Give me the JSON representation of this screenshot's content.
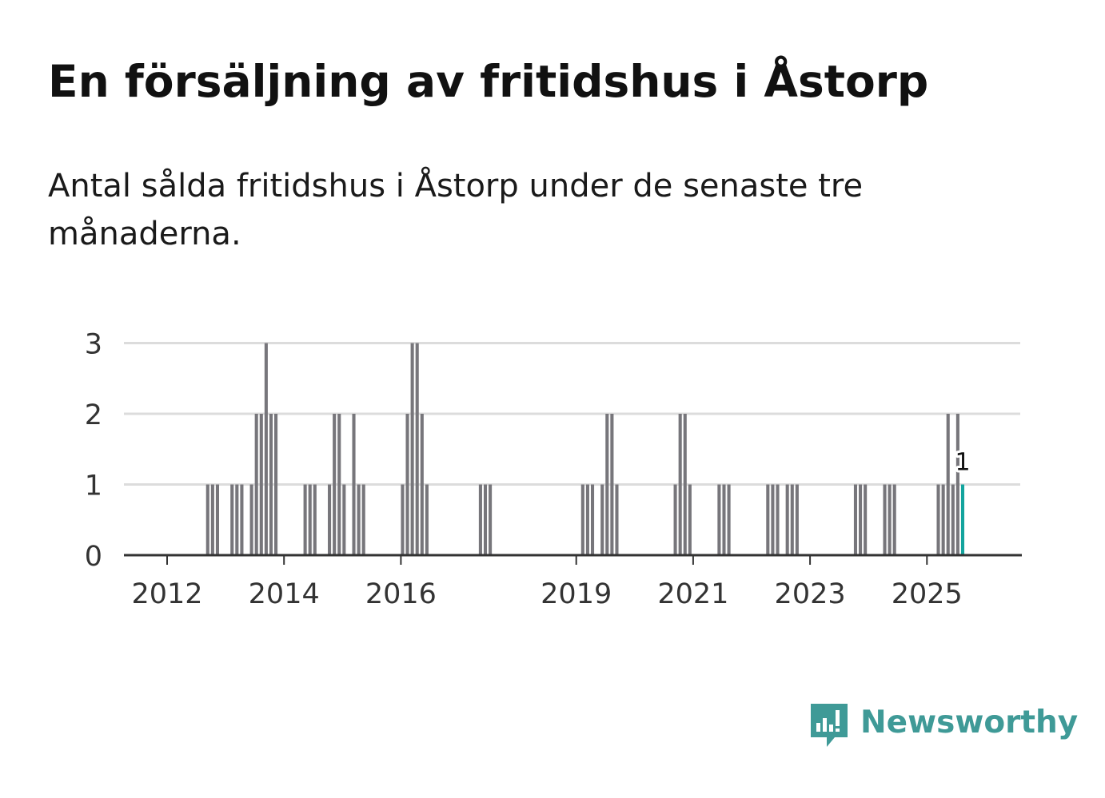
{
  "header": {
    "title": "En försäljning av fritidshus i Åstorp",
    "subtitle": "Antal sålda fritidshus i Åstorp under de senaste tre månaderna."
  },
  "brand": {
    "name": "Newsworthy",
    "icon": "newsworthy-logo-icon",
    "color": "#3f9a97"
  },
  "chart_data": {
    "type": "bar",
    "title": "",
    "xlabel": "",
    "ylabel": "",
    "x_unit": "month",
    "ylim": [
      0,
      3
    ],
    "yticks": [
      "0",
      "1",
      "2",
      "3"
    ],
    "xticks": [
      "2012",
      "2014",
      "2016",
      "2019",
      "2021",
      "2023",
      "2025"
    ],
    "grid": true,
    "legend": "none",
    "colors": {
      "bar": "#77767b",
      "highlight": "#13a49e",
      "grid": "#dcdcdc",
      "axis": "#333333"
    },
    "highlight_label": "1",
    "series": [
      {
        "values": [
          {
            "x": "2012-09",
            "y": 1
          },
          {
            "x": "2012-10",
            "y": 1
          },
          {
            "x": "2012-11",
            "y": 1
          },
          {
            "x": "2013-02",
            "y": 1
          },
          {
            "x": "2013-03",
            "y": 1
          },
          {
            "x": "2013-04",
            "y": 1
          },
          {
            "x": "2013-06",
            "y": 1
          },
          {
            "x": "2013-07",
            "y": 2
          },
          {
            "x": "2013-08",
            "y": 2
          },
          {
            "x": "2013-09",
            "y": 3
          },
          {
            "x": "2013-10",
            "y": 2
          },
          {
            "x": "2013-11",
            "y": 2
          },
          {
            "x": "2014-05",
            "y": 1
          },
          {
            "x": "2014-06",
            "y": 1
          },
          {
            "x": "2014-07",
            "y": 1
          },
          {
            "x": "2014-10",
            "y": 1
          },
          {
            "x": "2014-11",
            "y": 2
          },
          {
            "x": "2014-12",
            "y": 2
          },
          {
            "x": "2015-01",
            "y": 1
          },
          {
            "x": "2015-03",
            "y": 2
          },
          {
            "x": "2015-04",
            "y": 1
          },
          {
            "x": "2015-05",
            "y": 1
          },
          {
            "x": "2016-01",
            "y": 1
          },
          {
            "x": "2016-02",
            "y": 2
          },
          {
            "x": "2016-03",
            "y": 3
          },
          {
            "x": "2016-04",
            "y": 3
          },
          {
            "x": "2016-05",
            "y": 2
          },
          {
            "x": "2016-06",
            "y": 1
          },
          {
            "x": "2017-05",
            "y": 1
          },
          {
            "x": "2017-06",
            "y": 1
          },
          {
            "x": "2017-07",
            "y": 1
          },
          {
            "x": "2019-02",
            "y": 1
          },
          {
            "x": "2019-03",
            "y": 1
          },
          {
            "x": "2019-04",
            "y": 1
          },
          {
            "x": "2019-06",
            "y": 1
          },
          {
            "x": "2019-07",
            "y": 2
          },
          {
            "x": "2019-08",
            "y": 2
          },
          {
            "x": "2019-09",
            "y": 1
          },
          {
            "x": "2020-09",
            "y": 1
          },
          {
            "x": "2020-10",
            "y": 2
          },
          {
            "x": "2020-11",
            "y": 2
          },
          {
            "x": "2020-12",
            "y": 1
          },
          {
            "x": "2021-06",
            "y": 1
          },
          {
            "x": "2021-07",
            "y": 1
          },
          {
            "x": "2021-08",
            "y": 1
          },
          {
            "x": "2022-04",
            "y": 1
          },
          {
            "x": "2022-05",
            "y": 1
          },
          {
            "x": "2022-06",
            "y": 1
          },
          {
            "x": "2022-08",
            "y": 1
          },
          {
            "x": "2022-09",
            "y": 1
          },
          {
            "x": "2022-10",
            "y": 1
          },
          {
            "x": "2023-10",
            "y": 1
          },
          {
            "x": "2023-11",
            "y": 1
          },
          {
            "x": "2023-12",
            "y": 1
          },
          {
            "x": "2024-04",
            "y": 1
          },
          {
            "x": "2024-05",
            "y": 1
          },
          {
            "x": "2024-06",
            "y": 1
          },
          {
            "x": "2025-03",
            "y": 1
          },
          {
            "x": "2025-04",
            "y": 1
          },
          {
            "x": "2025-05",
            "y": 2
          },
          {
            "x": "2025-06",
            "y": 1
          },
          {
            "x": "2025-07",
            "y": 2
          },
          {
            "x": "2025-08",
            "y": 1,
            "highlight": true
          }
        ]
      }
    ]
  }
}
